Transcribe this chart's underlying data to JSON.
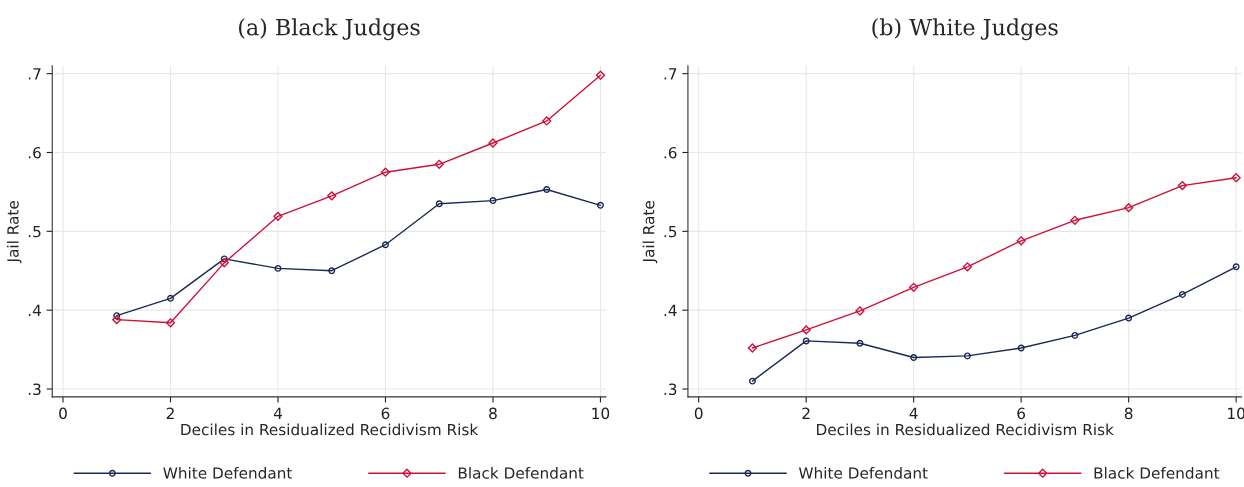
{
  "chart_data": [
    {
      "type": "line",
      "title": "(a) Black Judges",
      "xlabel": "Deciles in Residualized Recidivism Risk",
      "ylabel": "Jail Rate",
      "x": [
        1,
        2,
        3,
        4,
        5,
        6,
        7,
        8,
        9,
        10
      ],
      "series": [
        {
          "name": "White Defendant",
          "color": "#1a2a55",
          "marker": "circle",
          "values": [
            0.393,
            0.415,
            0.465,
            0.453,
            0.45,
            0.483,
            0.535,
            0.539,
            0.553,
            0.533
          ]
        },
        {
          "name": "Black Defendant",
          "color": "#d0103a",
          "marker": "diamond",
          "values": [
            0.388,
            0.384,
            0.46,
            0.519,
            0.545,
            0.575,
            0.585,
            0.612,
            0.64,
            0.698
          ]
        }
      ],
      "xlim": [
        -0.2,
        10.1
      ],
      "xticks": [
        0,
        2,
        4,
        6,
        8,
        10
      ],
      "ylim": [
        0.29,
        0.71
      ],
      "yticks": [
        {
          "value": 0.3,
          "label": ".3"
        },
        {
          "value": 0.4,
          "label": ".4"
        },
        {
          "value": 0.5,
          "label": ".5"
        },
        {
          "value": 0.6,
          "label": ".6"
        },
        {
          "value": 0.7,
          "label": ".7"
        }
      ],
      "grid": true,
      "legend": "bottom",
      "line_style": "solid"
    },
    {
      "type": "line",
      "title": "(b) White Judges",
      "xlabel": "Deciles in Residualized Recidivism Risk",
      "ylabel": "Jail Rate",
      "x": [
        1,
        2,
        3,
        4,
        5,
        6,
        7,
        8,
        9,
        10
      ],
      "series": [
        {
          "name": "White Defendant",
          "color": "#1a2a55",
          "marker": "circle",
          "values": [
            0.31,
            0.361,
            0.358,
            0.34,
            0.342,
            0.352,
            0.368,
            0.39,
            0.42,
            0.455
          ]
        },
        {
          "name": "Black Defendant",
          "color": "#d0103a",
          "marker": "diamond",
          "values": [
            0.352,
            0.375,
            0.399,
            0.429,
            0.455,
            0.488,
            0.514,
            0.53,
            0.558,
            0.568
          ]
        }
      ],
      "xlim": [
        -0.2,
        10.1
      ],
      "xticks": [
        0,
        2,
        4,
        6,
        8,
        10
      ],
      "ylim": [
        0.29,
        0.71
      ],
      "yticks": [
        {
          "value": 0.3,
          "label": ".3"
        },
        {
          "value": 0.4,
          "label": ".4"
        },
        {
          "value": 0.5,
          "label": ".5"
        },
        {
          "value": 0.6,
          "label": ".6"
        },
        {
          "value": 0.7,
          "label": ".7"
        }
      ],
      "grid": true,
      "legend": "bottom",
      "line_style": "solid"
    }
  ]
}
